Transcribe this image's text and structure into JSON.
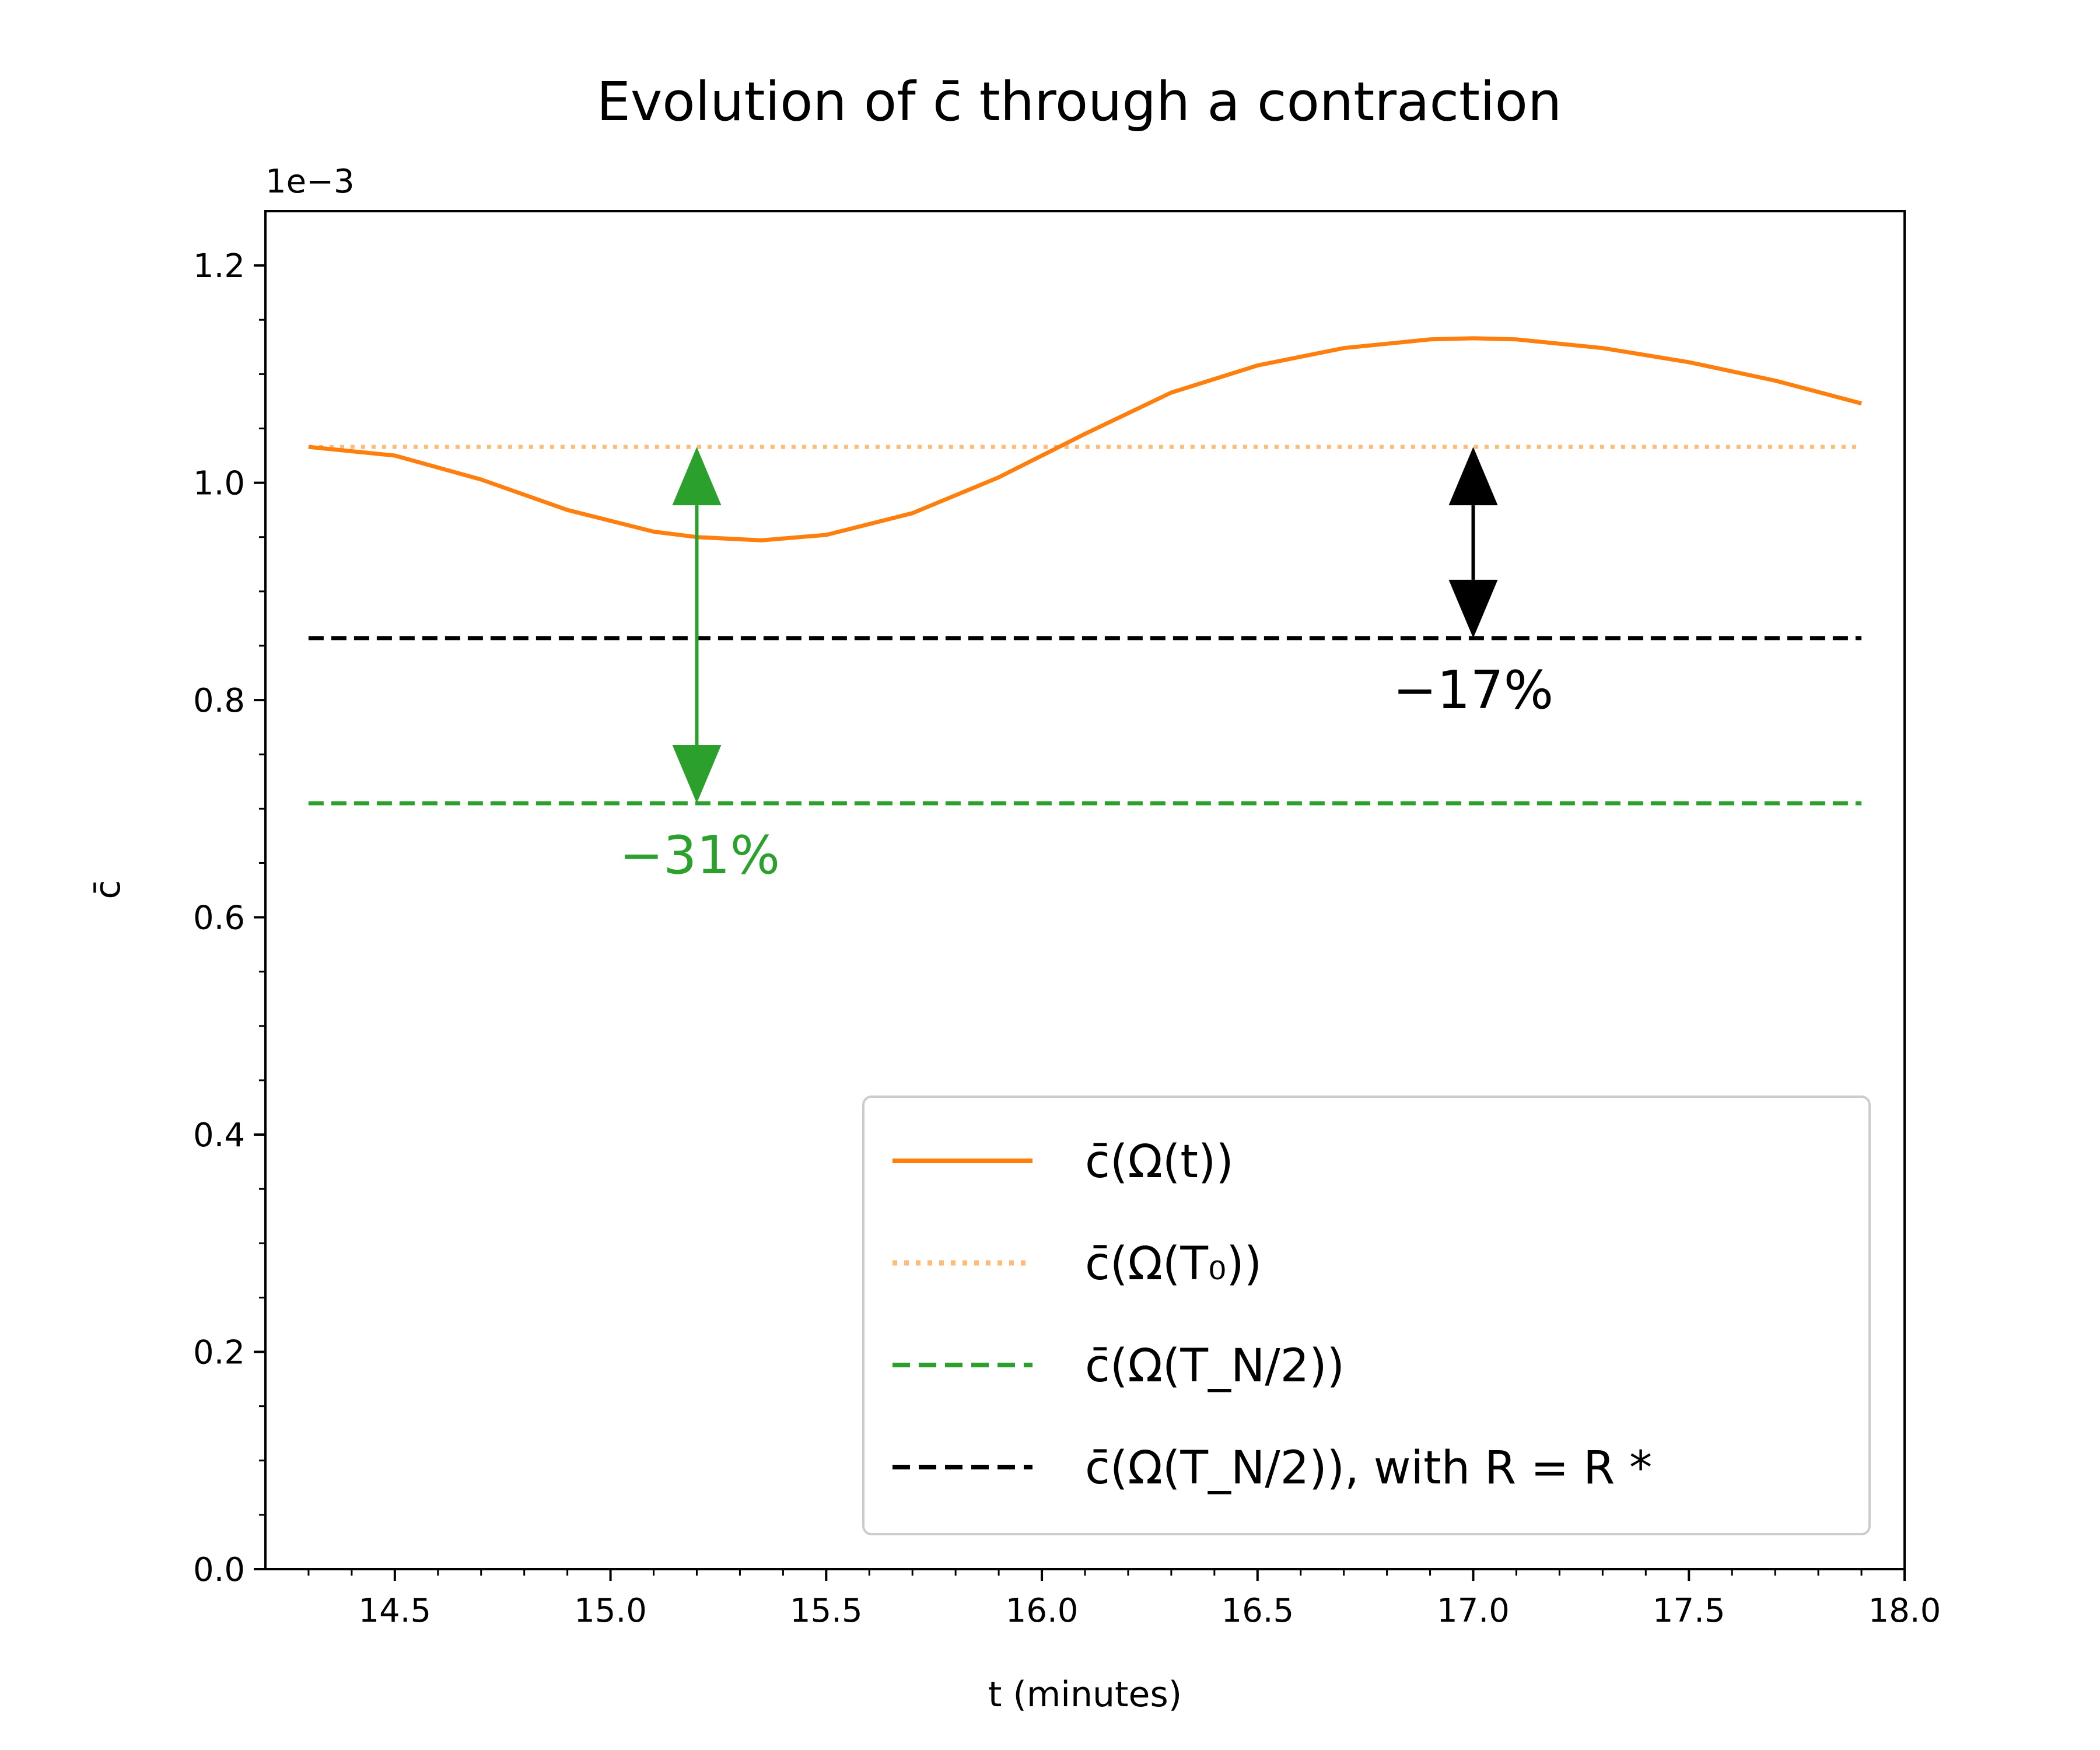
{
  "chart_data": {
    "type": "line",
    "title": "Evolution of c̄ through a contraction",
    "xlabel": "t (minutes)",
    "ylabel": "c̄",
    "y_offset_label": "1e−3",
    "xlim": [
      14.2,
      18.0
    ],
    "ylim": [
      0.0,
      1.25
    ],
    "x_ticks": [
      "14.5",
      "15.0",
      "15.5",
      "16.0",
      "16.5",
      "17.0",
      "17.5",
      "18.0"
    ],
    "x_tick_values": [
      14.5,
      15.0,
      15.5,
      16.0,
      16.5,
      17.0,
      17.5,
      18.0
    ],
    "y_ticks": [
      "0.0",
      "0.2",
      "0.4",
      "0.6",
      "0.8",
      "1.0",
      "1.2"
    ],
    "y_tick_values": [
      0.0,
      0.2,
      0.4,
      0.6,
      0.8,
      1.0,
      1.2
    ],
    "grid": false,
    "legend_position": "lower-right",
    "series": [
      {
        "name": "c̄(Ω(t))",
        "style": "solid",
        "color": "#ff7f0e",
        "x": [
          14.3,
          14.5,
          14.7,
          14.9,
          15.1,
          15.2,
          15.35,
          15.5,
          15.7,
          15.9,
          16.1,
          16.3,
          16.5,
          16.7,
          16.9,
          17.0,
          17.1,
          17.3,
          17.5,
          17.7,
          17.9
        ],
        "y": [
          1.033,
          1.025,
          1.003,
          0.975,
          0.955,
          0.95,
          0.947,
          0.952,
          0.972,
          1.005,
          1.045,
          1.083,
          1.108,
          1.124,
          1.132,
          1.133,
          1.132,
          1.124,
          1.111,
          1.094,
          1.073
        ]
      },
      {
        "name": "c̄(Ω(T₀))",
        "style": "dotted",
        "color": "#ffbb78",
        "x": [
          14.3,
          17.9
        ],
        "y": [
          1.033,
          1.033
        ]
      },
      {
        "name": "c̄(Ω(T_N/2))",
        "style": "dashed",
        "color": "#2ca02c",
        "x": [
          14.3,
          17.9
        ],
        "y": [
          0.705,
          0.705
        ]
      },
      {
        "name": "c̄(Ω(T_N/2)), with R = R *",
        "style": "dashed",
        "color": "#000000",
        "x": [
          14.3,
          17.9
        ],
        "y": [
          0.857,
          0.857
        ]
      }
    ],
    "annotations": [
      {
        "text": "−31%",
        "color": "#2ca02c",
        "arrow_x": 15.2,
        "arrow_from": 1.033,
        "arrow_to": 0.705
      },
      {
        "text": "−17%",
        "color": "#000000",
        "arrow_x": 17.0,
        "arrow_from": 1.033,
        "arrow_to": 0.857
      }
    ]
  }
}
